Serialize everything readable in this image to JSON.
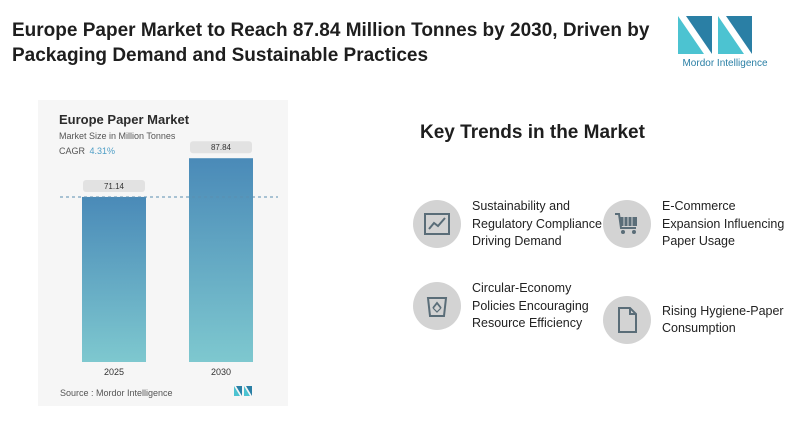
{
  "headline": "Europe Paper Market to Reach 87.84 Million Tonnes by 2030, Driven by Packaging Demand and Sustainable Practices",
  "brand": {
    "name": "Mordor Intelligence",
    "color": "#2a7fa5",
    "accent": "#4cc3d1"
  },
  "chart_data": {
    "type": "bar",
    "title": "Europe Paper Market",
    "subtitle": "Market Size in Million Tonnes",
    "cagr_label": "CAGR",
    "cagr_value": "4.31%",
    "categories": [
      "2025",
      "2030"
    ],
    "values": [
      71.14,
      87.84
    ],
    "value_labels": [
      "71.14",
      "87.84"
    ],
    "ylim": [
      0,
      100
    ],
    "xlabel": "",
    "ylabel": "",
    "reference_line": 71.14,
    "bar_color_top": "#4a8ab8",
    "bar_color_bottom": "#7ec8cf",
    "source": "Source : Mordor Intelligence"
  },
  "trends": {
    "title": "Key Trends in the Market",
    "items": [
      {
        "text": "Sustainability and Regulatory Compliance Driving Demand",
        "icon": "line-chart-icon"
      },
      {
        "text": "E-Commerce Expansion Influencing Paper Usage",
        "icon": "shopping-cart-icon"
      },
      {
        "text": "Circular-Economy Policies Encouraging Resource Efficiency",
        "icon": "recycle-bin-icon"
      },
      {
        "text": "Rising Hygiene-Paper Consumption",
        "icon": "document-icon"
      }
    ]
  }
}
